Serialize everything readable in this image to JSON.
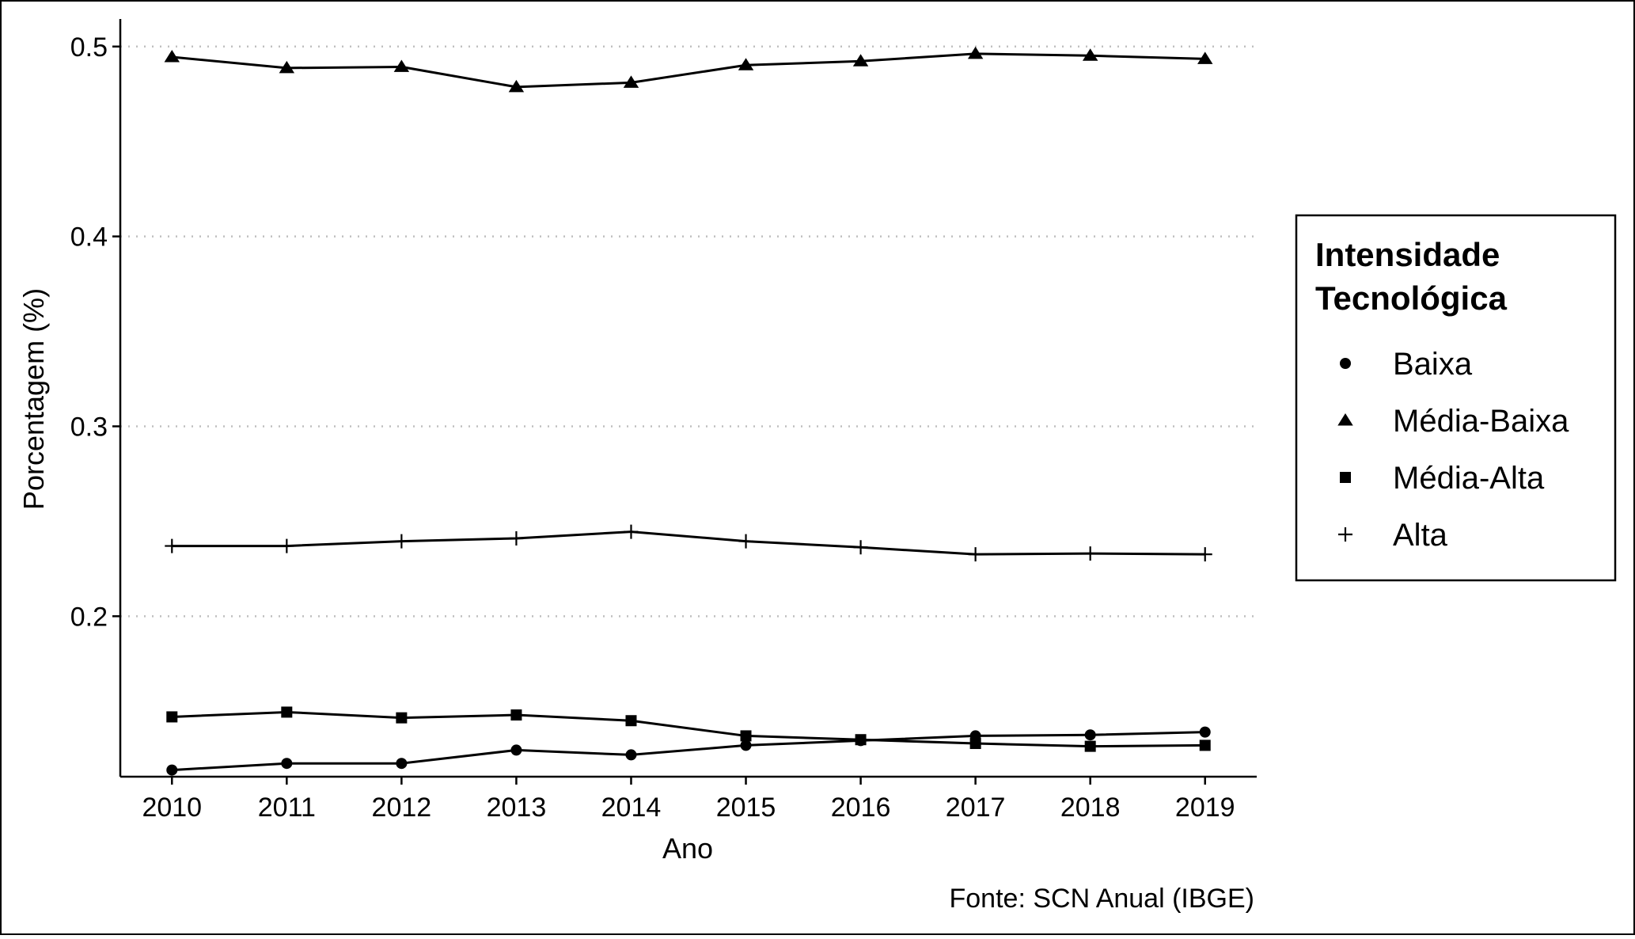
{
  "chart_data": {
    "type": "line",
    "title": "",
    "xlabel": "Ano",
    "ylabel": "Porcentagem (%)",
    "caption": "Fonte: SCN Anual (IBGE)",
    "x": [
      2010,
      2011,
      2012,
      2013,
      2014,
      2015,
      2016,
      2017,
      2018,
      2019
    ],
    "x_tick_labels": [
      "2010",
      "2011",
      "2012",
      "2013",
      "2014",
      "2015",
      "2016",
      "2017",
      "2018",
      "2019"
    ],
    "y_ticks": [
      0.2,
      0.3,
      0.4,
      0.5
    ],
    "y_tick_labels": [
      "0.2",
      "0.3",
      "0.4",
      "0.5"
    ],
    "ylim": [
      0.1155,
      0.5145
    ],
    "xlim": [
      2009.55,
      2019.45
    ],
    "grid": "horizontal dotted at y ticks",
    "legend": {
      "title_line1": "Intensidade",
      "title_line2": "Tecnológica",
      "placement": "right"
    },
    "series": [
      {
        "name": "Baixa",
        "marker": "circle",
        "values": [
          0.119,
          0.1225,
          0.1225,
          0.1295,
          0.127,
          0.132,
          0.1345,
          0.137,
          0.1375,
          0.139
        ]
      },
      {
        "name": "Média-Baixa",
        "marker": "triangle",
        "values": [
          0.4945,
          0.4887,
          0.4893,
          0.4787,
          0.481,
          0.4902,
          0.4923,
          0.4962,
          0.4952,
          0.4935
        ]
      },
      {
        "name": "Média-Alta",
        "marker": "square",
        "values": [
          0.147,
          0.1495,
          0.1465,
          0.148,
          0.145,
          0.137,
          0.135,
          0.133,
          0.1315,
          0.132
        ]
      },
      {
        "name": "Alta",
        "marker": "plus",
        "values": [
          0.237,
          0.237,
          0.2395,
          0.241,
          0.2445,
          0.2395,
          0.2363,
          0.2326,
          0.233,
          0.2326
        ]
      }
    ],
    "colors": {
      "line": "#000000",
      "grid": "#bfbfbf",
      "background": "#ffffff"
    }
  }
}
